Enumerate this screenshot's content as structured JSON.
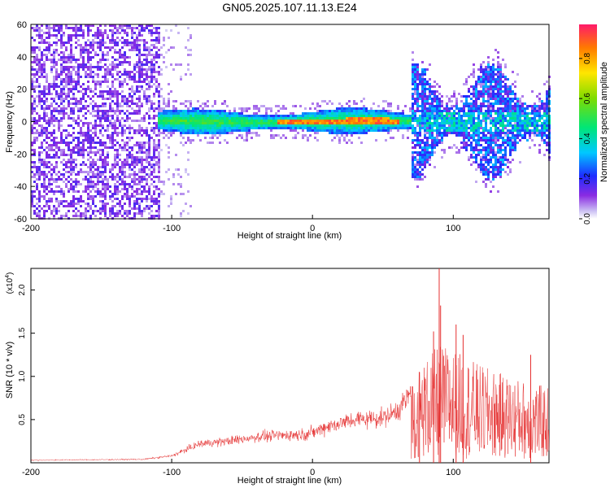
{
  "page_title": "GN05.2025.107.11.13.E24",
  "chart_data": [
    {
      "type": "heatmap",
      "title": "GN05.2025.107.11.13.E24",
      "xlabel": "Height of straight line (km)",
      "ylabel": "Frequency (Hz)",
      "xlim": [
        -200,
        168
      ],
      "ylim": [
        -60,
        60
      ],
      "xticks": [
        "-200",
        "-100",
        "0",
        "100"
      ],
      "yticks": [
        "60",
        "40",
        "20",
        "0",
        "-20",
        "-40",
        "-60"
      ],
      "colorbar": {
        "label": "Normalized spectral amplitude",
        "ticks": [
          "0.0",
          "0.2",
          "0.4",
          "0.6",
          "0.8"
        ],
        "range": [
          0,
          0.97
        ]
      },
      "regions": [
        {
          "name": "dense noise",
          "x_range": [
            -200,
            -108
          ],
          "y_range": [
            -60,
            60
          ],
          "amplitude": 0.15
        },
        {
          "name": "sparse noise",
          "x_range": [
            -108,
            -85
          ],
          "y_range": [
            -60,
            60
          ],
          "amplitude": 0.05
        },
        {
          "name": "signal band",
          "x_range": [
            -110,
            70
          ],
          "y_range": [
            -8,
            8
          ],
          "amplitude": 0.45
        },
        {
          "name": "peak band",
          "x_range": [
            -25,
            60
          ],
          "y_range": [
            -2,
            2
          ],
          "amplitude": 0.9
        },
        {
          "name": "broadband",
          "x_range": [
            70,
            168
          ],
          "y_range": [
            -40,
            40
          ],
          "amplitude": 0.3
        }
      ]
    },
    {
      "type": "line",
      "xlabel": "Height of straight line (km)",
      "ylabel": "SNR (10 * v/v)",
      "multiplier": "(x10",
      "multiplier_exp": "4",
      "xlim": [
        -200,
        168
      ],
      "ylim": [
        0,
        22500
      ],
      "xticks": [
        "-200",
        "-100",
        "0",
        "100"
      ],
      "yticks": [
        "0.5",
        "1.0",
        "1.5",
        "2.0"
      ],
      "color": "#e53030",
      "envelope": {
        "x": [
          -200,
          -120,
          -100,
          -90,
          -80,
          -60,
          -40,
          -20,
          -5,
          0,
          10,
          30,
          50,
          60,
          70,
          80,
          90,
          100,
          120,
          140,
          168
        ],
        "y": [
          300,
          400,
          800,
          1500,
          2200,
          2500,
          3000,
          3200,
          3300,
          3500,
          4200,
          5000,
          5200,
          6000,
          8000,
          9500,
          11000,
          10500,
          9000,
          8000,
          7000
        ]
      },
      "peaks": [
        {
          "x": 90,
          "y": 22500
        },
        {
          "x": 91,
          "y": 18200
        },
        {
          "x": 102,
          "y": 16000
        },
        {
          "x": 107,
          "y": 14800
        },
        {
          "x": 86,
          "y": 15200
        },
        {
          "x": 76,
          "y": 10500
        },
        {
          "x": 155,
          "y": 12500
        }
      ]
    }
  ]
}
